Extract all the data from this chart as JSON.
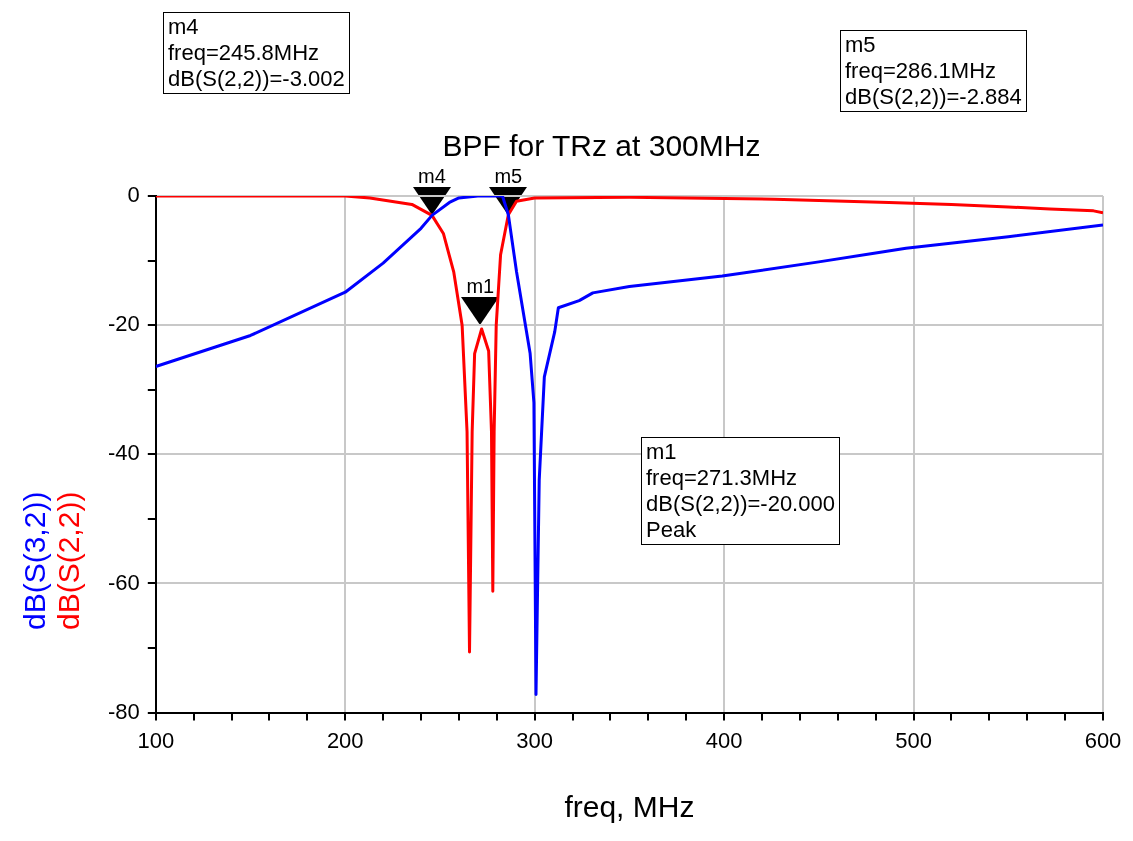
{
  "chart_data": {
    "type": "line",
    "title": "BPF for TRz at 300MHz",
    "xlabel": "freq, MHz",
    "ylabel": "dB(S(3,2))\ndB(S(2,2))",
    "xlim": [
      100,
      600
    ],
    "ylim": [
      -80,
      0
    ],
    "xticks": [
      100,
      {
        "value": 120,
        "label": null
      },
      {
        "value": 140,
        "label": null
      },
      {
        "value": 160,
        "label": null
      },
      {
        "value": 180,
        "label": null
      },
      200,
      {
        "value": 220,
        "label": null
      },
      {
        "value": 240,
        "label": null
      },
      {
        "value": 260,
        "label": null
      },
      {
        "value": 280,
        "label": null
      },
      300,
      {
        "value": 320,
        "label": null
      },
      {
        "value": 340,
        "label": null
      },
      {
        "value": 360,
        "label": null
      },
      {
        "value": 380,
        "label": null
      },
      400,
      {
        "value": 420,
        "label": null
      },
      {
        "value": 440,
        "label": null
      },
      {
        "value": 460,
        "label": null
      },
      {
        "value": 480,
        "label": null
      },
      500,
      {
        "value": 520,
        "label": null
      },
      {
        "value": 540,
        "label": null
      },
      {
        "value": 560,
        "label": null
      },
      {
        "value": 580,
        "label": null
      },
      600
    ],
    "yticks": [
      -80,
      {
        "value": -70,
        "label": null
      },
      -60,
      {
        "value": -50,
        "label": null
      },
      -40,
      {
        "value": -30,
        "label": null
      },
      -20,
      {
        "value": -10,
        "label": null
      },
      0
    ],
    "grid": true,
    "legend": false,
    "marker": "none",
    "line_style": "solid",
    "series": [
      {
        "color": "#0000ff",
        "x": [
          100,
          150,
          200,
          220,
          240,
          245.8,
          255,
          260,
          270,
          283,
          286.1,
          290.4,
          297.6,
          299.6,
          300.7,
          302.4,
          305.1,
          310.6,
          312.5,
          323.5,
          330.7,
          350,
          399,
          450,
          496,
          550,
          600
        ],
        "values": [
          -26.4,
          -21.6,
          -14.9,
          -10.4,
          -5,
          -3,
          -1,
          -0.3,
          0,
          0,
          -2.9,
          -11.7,
          -24.4,
          -32,
          -77.2,
          -44,
          -28,
          -21,
          -17.3,
          -16.2,
          -15,
          -14,
          -12.4,
          -10.2,
          -8.1,
          -6.3,
          -4.5
        ]
      },
      {
        "color": "#ff0000",
        "x": [
          100,
          200,
          213,
          235.2,
          245.8,
          251.8,
          257.3,
          261.7,
          264.3,
          265.6,
          267,
          268.3,
          272,
          275.7,
          277.2,
          277.9,
          278.6,
          279.7,
          282,
          286.1,
          290.4,
          300,
          350,
          426.7,
          487,
          520,
          550,
          572,
          595,
          600
        ],
        "values": [
          0,
          0,
          -0.3,
          -1.3,
          -3,
          -5.8,
          -11.8,
          -20,
          -36.5,
          -70.6,
          -36.5,
          -24.4,
          -20.6,
          -24,
          -36.5,
          -61.2,
          -36.5,
          -20,
          -9.1,
          -2.9,
          -0.8,
          -0.3,
          -0.2,
          -0.5,
          -1,
          -1.3,
          -1.7,
          -2,
          -2.3,
          -2.6
        ]
      }
    ],
    "annotations": [
      {
        "text": "m4",
        "x": 245.8,
        "y": -3.002
      },
      {
        "text": "m5",
        "x": 286.1,
        "y": -2.884
      },
      {
        "text": "m1",
        "x": 271.3,
        "y": -20
      },
      "m4\nfreq=245.8MHz\ndB(S(2,2))=-3.002",
      "m5\nfreq=286.1MHz\ndB(S(2,2))=-2.884",
      "m1\nfreq=271.3MHz\ndB(S(2,2))=-20.000\nPeak"
    ]
  }
}
